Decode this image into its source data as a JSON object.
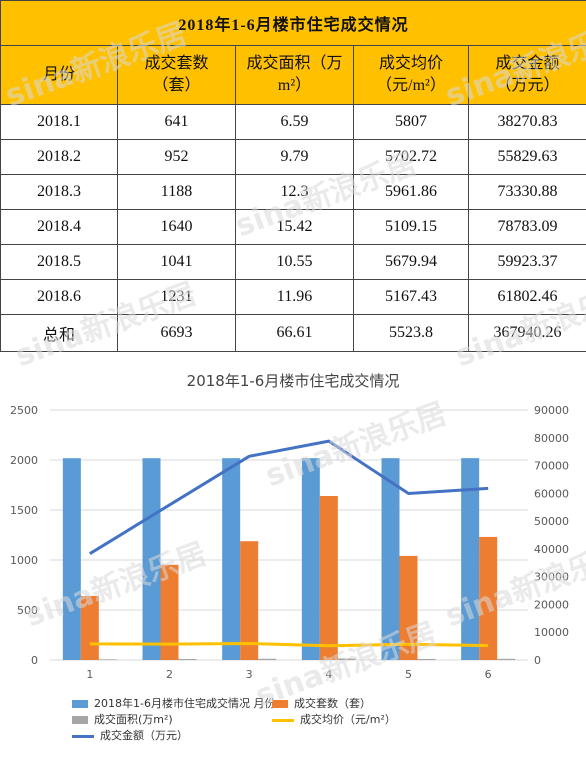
{
  "table": {
    "title": "2018年1-6月楼市住宅成交情况",
    "headers": [
      [
        "月份"
      ],
      [
        "成交套数",
        "（套）"
      ],
      [
        "成交面积（万",
        "m²）"
      ],
      [
        "成交均价",
        "（元/m²）"
      ],
      [
        "成交金额",
        "（万元）"
      ]
    ],
    "rows": [
      [
        "2018.1",
        "641",
        "6.59",
        "5807",
        "38270.83"
      ],
      [
        "2018.2",
        "952",
        "9.79",
        "5702.72",
        "55829.63"
      ],
      [
        "2018.3",
        "1188",
        "12.3",
        "5961.86",
        "73330.88"
      ],
      [
        "2018.4",
        "1640",
        "15.42",
        "5109.15",
        "78783.09"
      ],
      [
        "2018.5",
        "1041",
        "10.55",
        "5679.94",
        "59923.37"
      ],
      [
        "2018.6",
        "1231",
        "11.96",
        "5167.43",
        "61802.46"
      ]
    ],
    "total": [
      "总和",
      "6693",
      "66.61",
      "5523.8",
      "367940.26"
    ]
  },
  "watermark": "sina新浪乐居",
  "chart_data": {
    "type": "bar",
    "title": "2018年1-6月楼市住宅成交情况",
    "categories": [
      "1",
      "2",
      "3",
      "4",
      "5",
      "6"
    ],
    "y_left": {
      "ticks": [
        "0",
        "500",
        "1000",
        "1500",
        "2000",
        "2500"
      ],
      "range": [
        0,
        2500
      ]
    },
    "y_right": {
      "ticks": [
        "0",
        "10000",
        "20000",
        "30000",
        "40000",
        "50000",
        "60000",
        "70000",
        "80000",
        "90000"
      ],
      "range": [
        0,
        90000
      ]
    },
    "series": [
      {
        "name": "2018年1-6月楼市住宅成交情况 月份",
        "type": "bar",
        "axis": "left",
        "color": "#5b9bd5",
        "values": [
          2018.1,
          2018.2,
          2018.3,
          2018.4,
          2018.5,
          2018.6
        ]
      },
      {
        "name": "成交套数（套）",
        "type": "bar",
        "axis": "left",
        "color": "#ed7d31",
        "values": [
          641,
          952,
          1188,
          1640,
          1041,
          1231
        ]
      },
      {
        "name": "成交面积(万m²)",
        "type": "bar",
        "axis": "left",
        "color": "#a5a5a5",
        "values": [
          6.59,
          9.79,
          12.3,
          15.42,
          10.55,
          11.96
        ]
      },
      {
        "name": "成交均价（元/m²）",
        "type": "line",
        "axis": "right",
        "color": "#ffc000",
        "values": [
          5807,
          5702.72,
          5961.86,
          5109.15,
          5679.94,
          5167.43
        ]
      },
      {
        "name": "成交金额（万元）",
        "type": "line",
        "axis": "right",
        "color": "#4472c4",
        "values": [
          38270.83,
          55829.63,
          73330.88,
          78783.09,
          59923.37,
          61802.46
        ]
      }
    ],
    "grid": true,
    "legend_position": "bottom"
  }
}
